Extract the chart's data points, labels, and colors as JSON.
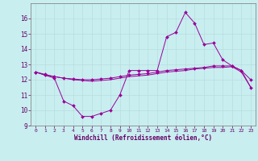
{
  "xlabel": "Windchill (Refroidissement éolien,°C)",
  "background_color": "#c8eef0",
  "grid_color": "#aacccc",
  "line_color": "#990099",
  "x_values": [
    0,
    1,
    2,
    3,
    4,
    5,
    6,
    7,
    8,
    9,
    10,
    11,
    12,
    13,
    14,
    15,
    16,
    17,
    18,
    19,
    20,
    21,
    22,
    23
  ],
  "line1": [
    12.5,
    12.3,
    12.1,
    10.6,
    10.3,
    9.6,
    9.6,
    9.8,
    10.0,
    11.0,
    12.6,
    12.6,
    12.6,
    12.6,
    14.8,
    15.1,
    16.4,
    15.7,
    14.3,
    14.4,
    13.3,
    12.9,
    12.6,
    12.0
  ],
  "line2": [
    12.5,
    12.35,
    12.2,
    12.1,
    12.05,
    12.0,
    12.0,
    12.05,
    12.1,
    12.2,
    12.3,
    12.35,
    12.4,
    12.5,
    12.6,
    12.65,
    12.7,
    12.75,
    12.8,
    12.9,
    12.9,
    12.9,
    12.6,
    11.5
  ],
  "line3": [
    12.5,
    12.3,
    12.2,
    12.1,
    12.0,
    11.95,
    11.9,
    11.95,
    12.0,
    12.1,
    12.2,
    12.25,
    12.3,
    12.4,
    12.5,
    12.55,
    12.6,
    12.7,
    12.75,
    12.8,
    12.8,
    12.85,
    12.5,
    11.5
  ],
  "ylim": [
    9,
    17
  ],
  "xlim": [
    -0.5,
    23.5
  ],
  "yticks": [
    9,
    10,
    11,
    12,
    13,
    14,
    15,
    16
  ],
  "xticks": [
    0,
    1,
    2,
    3,
    4,
    5,
    6,
    7,
    8,
    9,
    10,
    11,
    12,
    13,
    14,
    15,
    16,
    17,
    18,
    19,
    20,
    21,
    22,
    23
  ],
  "figsize": [
    3.2,
    2.0
  ],
  "dpi": 100
}
